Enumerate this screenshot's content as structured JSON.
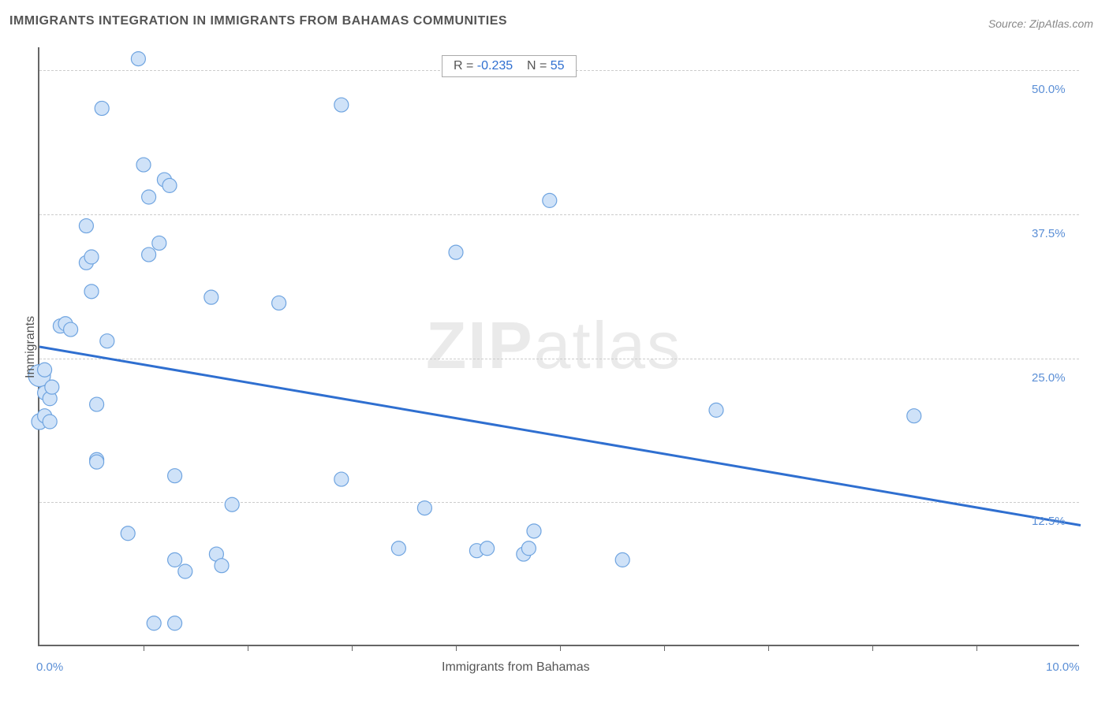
{
  "title": "IMMIGRANTS INTEGRATION IN IMMIGRANTS FROM BAHAMAS COMMUNITIES",
  "source_label": "Source: ZipAtlas.com",
  "watermark_bold": "ZIP",
  "watermark_rest": "atlas",
  "stats": {
    "r_label": "R =",
    "r_value": "-0.235",
    "n_label": "N =",
    "n_value": "55"
  },
  "chart": {
    "type": "scatter",
    "xlabel": "Immigrants from Bahamas",
    "ylabel": "Immigrants",
    "xlim": [
      0.0,
      10.0
    ],
    "ylim": [
      0.0,
      52.0
    ],
    "x_start_label": "0.0%",
    "x_end_label": "10.0%",
    "y_gridlines": [
      12.5,
      25.0,
      37.5,
      50.0
    ],
    "y_gridline_labels": [
      "12.5%",
      "25.0%",
      "37.5%",
      "50.0%"
    ],
    "x_minor_ticks": [
      1.0,
      2.0,
      3.0,
      4.0,
      5.0,
      6.0,
      7.0,
      8.0,
      9.0
    ],
    "background_color": "#ffffff",
    "grid_color": "#cccccc",
    "axis_color": "#666666",
    "tick_label_color": "#5b8fd6",
    "label_color": "#555555",
    "label_fontsize": 16,
    "tick_fontsize": 15,
    "point_fill": "#cfe2f8",
    "point_stroke": "#6fa4e0",
    "point_radius": 9,
    "trend_color": "#2f6fd0",
    "trend_width": 3,
    "trend_line": {
      "x1": 0.0,
      "y1": 26.0,
      "x2": 10.0,
      "y2": 10.5
    },
    "points": [
      {
        "x": 0.0,
        "y": 23.5,
        "r": 14
      },
      {
        "x": 0.0,
        "y": 19.5,
        "r": 10
      },
      {
        "x": 0.05,
        "y": 24.0
      },
      {
        "x": 0.05,
        "y": 22.0
      },
      {
        "x": 0.05,
        "y": 20.0
      },
      {
        "x": 0.1,
        "y": 21.5
      },
      {
        "x": 0.1,
        "y": 19.5
      },
      {
        "x": 0.12,
        "y": 22.5
      },
      {
        "x": 0.2,
        "y": 27.8
      },
      {
        "x": 0.25,
        "y": 28.0
      },
      {
        "x": 0.3,
        "y": 27.5
      },
      {
        "x": 0.45,
        "y": 36.5
      },
      {
        "x": 0.45,
        "y": 33.3
      },
      {
        "x": 0.5,
        "y": 33.8
      },
      {
        "x": 0.5,
        "y": 30.8
      },
      {
        "x": 0.55,
        "y": 16.2
      },
      {
        "x": 0.55,
        "y": 16.0
      },
      {
        "x": 0.55,
        "y": 21.0
      },
      {
        "x": 0.6,
        "y": 46.7
      },
      {
        "x": 0.65,
        "y": 26.5
      },
      {
        "x": 0.85,
        "y": 9.8
      },
      {
        "x": 0.95,
        "y": 51.0
      },
      {
        "x": 1.0,
        "y": 41.8
      },
      {
        "x": 1.05,
        "y": 34.0
      },
      {
        "x": 1.05,
        "y": 39.0
      },
      {
        "x": 1.1,
        "y": 2.0
      },
      {
        "x": 1.15,
        "y": 35.0
      },
      {
        "x": 1.2,
        "y": 40.5
      },
      {
        "x": 1.25,
        "y": 40.0
      },
      {
        "x": 1.3,
        "y": 2.0
      },
      {
        "x": 1.3,
        "y": 14.8
      },
      {
        "x": 1.3,
        "y": 7.5
      },
      {
        "x": 1.4,
        "y": 6.5
      },
      {
        "x": 1.65,
        "y": 30.3
      },
      {
        "x": 1.7,
        "y": 8.0
      },
      {
        "x": 1.75,
        "y": 7.0
      },
      {
        "x": 1.85,
        "y": 12.3
      },
      {
        "x": 2.3,
        "y": 29.8
      },
      {
        "x": 2.9,
        "y": 47.0
      },
      {
        "x": 2.9,
        "y": 14.5
      },
      {
        "x": 3.45,
        "y": 8.5
      },
      {
        "x": 3.7,
        "y": 12.0
      },
      {
        "x": 4.0,
        "y": 34.2
      },
      {
        "x": 4.2,
        "y": 8.3
      },
      {
        "x": 4.3,
        "y": 8.5
      },
      {
        "x": 4.65,
        "y": 8.0
      },
      {
        "x": 4.7,
        "y": 8.5
      },
      {
        "x": 4.75,
        "y": 10.0
      },
      {
        "x": 4.9,
        "y": 38.7
      },
      {
        "x": 5.6,
        "y": 7.5
      },
      {
        "x": 6.5,
        "y": 20.5
      },
      {
        "x": 8.4,
        "y": 20.0
      }
    ]
  }
}
